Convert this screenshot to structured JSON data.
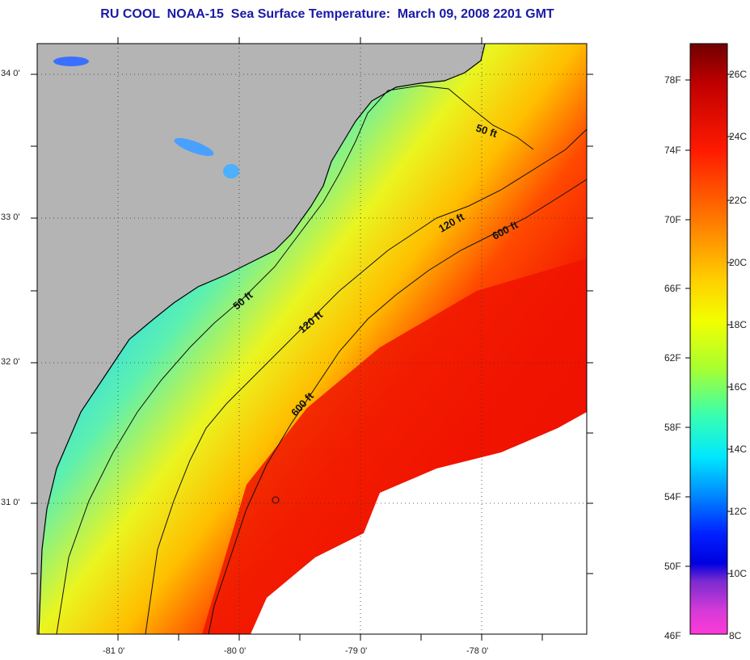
{
  "title": "RU COOL  NOAA-15  Sea Surface Temperature:  March 09, 2008 2201 GMT",
  "map": {
    "lat_labels": [
      "34 0'",
      "33 0'",
      "32 0'",
      "31 0'"
    ],
    "lon_labels": [
      "-81 0'",
      "-80 0'",
      "-79 0'",
      "-78 0'"
    ],
    "contour_labels": [
      "50 ft",
      "120 ft",
      "600 ft",
      "50 ft",
      "120 ft",
      "600 ft"
    ],
    "colors": {
      "land": "#b4b4b4",
      "cloud": "#ffffff"
    }
  },
  "colorbar": {
    "fahrenheit_labels": [
      "78F",
      "74F",
      "70F",
      "66F",
      "62F",
      "58F",
      "54F",
      "50F",
      "46F"
    ],
    "celsius_labels": [
      "26C",
      "24C",
      "22C",
      "20C",
      "18C",
      "16C",
      "14C",
      "12C",
      "10C",
      "8C"
    ],
    "gradient_colors": [
      "#700000",
      "#c20000",
      "#ff1a00",
      "#ff7a00",
      "#ffcf00",
      "#f2ff00",
      "#a8ff30",
      "#38ffb0",
      "#00e8ff",
      "#0090ff",
      "#0020ff",
      "#0000e0",
      "#7a2bd0",
      "#d53ad8",
      "#ff3ad8"
    ]
  }
}
